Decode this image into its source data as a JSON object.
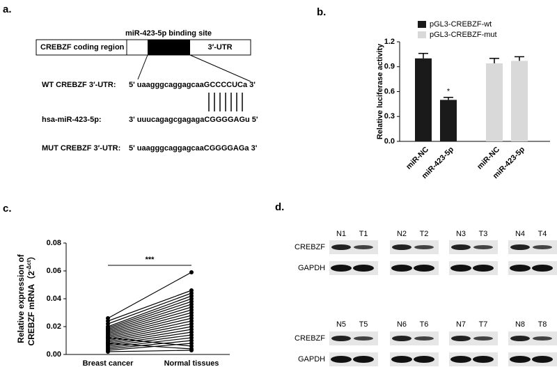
{
  "panel_labels": [
    "a.",
    "b.",
    "c.",
    "d."
  ],
  "panel_a": {
    "site_label": "miR-423-5p binding site",
    "coding_region": "CREBZF coding region",
    "utr": "3′-UTR",
    "rows": [
      {
        "label": "WT CREBZF 3′-UTR:",
        "sequence": "5' uaagggcaggagcaaGCCCCUCa 3'"
      },
      {
        "label": "hsa-miR-423-5p:",
        "sequence": "3' uuucagagcgagagaCGGGGAGu 5'"
      },
      {
        "label": "MUT CREBZF 3′-UTR:",
        "sequence": "5' uaagggcaggagcaaCGGGGAGa 3'"
      }
    ]
  },
  "panel_d": {
    "rows": [
      {
        "lanes": [
          "N1",
          "T1",
          "N2",
          "T2",
          "N3",
          "T3",
          "N4",
          "T4"
        ],
        "proteins": [
          "CREBZF",
          "GAPDH"
        ]
      },
      {
        "lanes": [
          "N5",
          "T5",
          "N6",
          "T6",
          "N7",
          "T7",
          "N8",
          "T8"
        ],
        "proteins": [
          "CREBZF",
          "GAPDH"
        ]
      }
    ]
  },
  "chart_data": [
    {
      "type": "bar",
      "ylabel": "Relative luciferase activity",
      "categories": [
        "miR-NC",
        "miR-423-5p",
        "miR-NC",
        "miR-423-5p"
      ],
      "series": [
        {
          "name": "pGL3-CREBZF-wt",
          "color": "#1a1a1a",
          "values": [
            1.0,
            0.5,
            null,
            null
          ],
          "errors": [
            0.06,
            0.03,
            null,
            null
          ]
        },
        {
          "name": "pGL3-CREBZF-mut",
          "color": "#d9d9d9",
          "values": [
            null,
            null,
            0.94,
            0.97
          ],
          "errors": [
            null,
            null,
            0.06,
            0.05
          ]
        }
      ],
      "annotation": "*",
      "ylim": [
        0,
        1.2
      ],
      "yticks": [
        {
          "value": 0,
          "label": "0.0"
        },
        0.3,
        0.6,
        0.9,
        1.2
      ]
    },
    {
      "type": "paired",
      "ylabel": [
        "Relative expression of",
        "CREBZF mRNA（2",
        "-Δct",
        "）"
      ],
      "categories": [
        "Breast cancer",
        "Normal tissues"
      ],
      "pairs": [
        [
          0.026,
          0.059
        ],
        [
          0.024,
          0.046
        ],
        [
          0.022,
          0.044
        ],
        [
          0.02,
          0.042
        ],
        [
          0.019,
          0.04
        ],
        [
          0.018,
          0.038
        ],
        [
          0.017,
          0.036
        ],
        [
          0.016,
          0.034
        ],
        [
          0.015,
          0.032
        ],
        [
          0.014,
          0.03
        ],
        [
          0.013,
          0.028
        ],
        [
          0.012,
          0.026
        ],
        [
          0.011,
          0.024
        ],
        [
          0.01,
          0.022
        ],
        [
          0.009,
          0.02
        ],
        [
          0.008,
          0.018
        ],
        [
          0.007,
          0.016
        ],
        [
          0.006,
          0.014
        ],
        [
          0.005,
          0.012
        ],
        [
          0.004,
          0.01
        ],
        [
          0.003,
          0.008
        ],
        [
          0.012,
          0.006
        ],
        [
          0.008,
          0.004
        ],
        [
          0.002,
          0.003
        ]
      ],
      "color": "#000000",
      "annotation": "***",
      "ylim": [
        0,
        0.08
      ],
      "yticks": [
        {
          "value": 0,
          "label": "0.00"
        },
        {
          "value": 0.02,
          "label": "0.02"
        },
        {
          "value": 0.04,
          "label": "0.04"
        },
        {
          "value": 0.06,
          "label": "0.06"
        },
        {
          "value": 0.08,
          "label": "0.08"
        }
      ]
    }
  ]
}
